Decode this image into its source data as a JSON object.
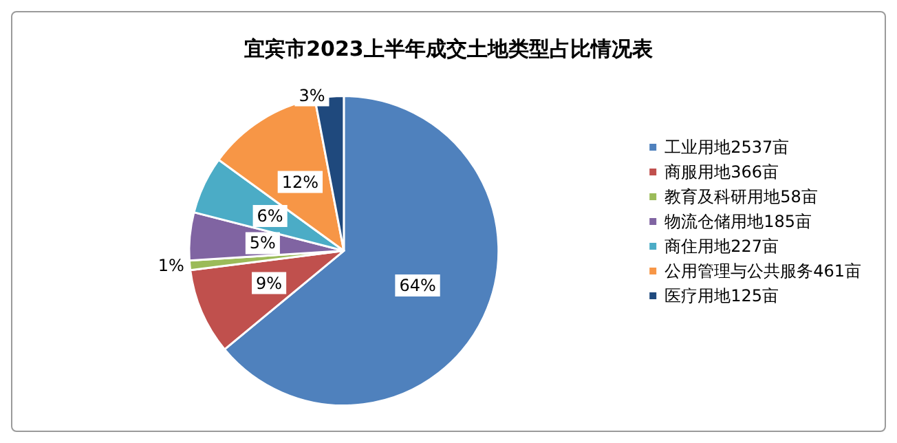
{
  "chart_data": {
    "type": "pie",
    "title": "宜宾市2023上半年成交土地类型占比情况表",
    "categories": [
      "工业用地2537亩",
      "商服用地366亩",
      "教育及科研用地58亩",
      "物流仓储用地185亩",
      "商住用地227亩",
      "公用管理与公共服务461亩",
      "医疗用地125亩"
    ],
    "values": [
      64,
      9,
      1,
      5,
      6,
      12,
      3
    ],
    "value_labels": [
      "64%",
      "9%",
      "1%",
      "5%",
      "6%",
      "12%",
      "3%"
    ],
    "colors": [
      "#4f81bd",
      "#c0504d",
      "#9bbb59",
      "#8064a2",
      "#4bacc6",
      "#f79646",
      "#1f497d"
    ],
    "legend": "right"
  }
}
